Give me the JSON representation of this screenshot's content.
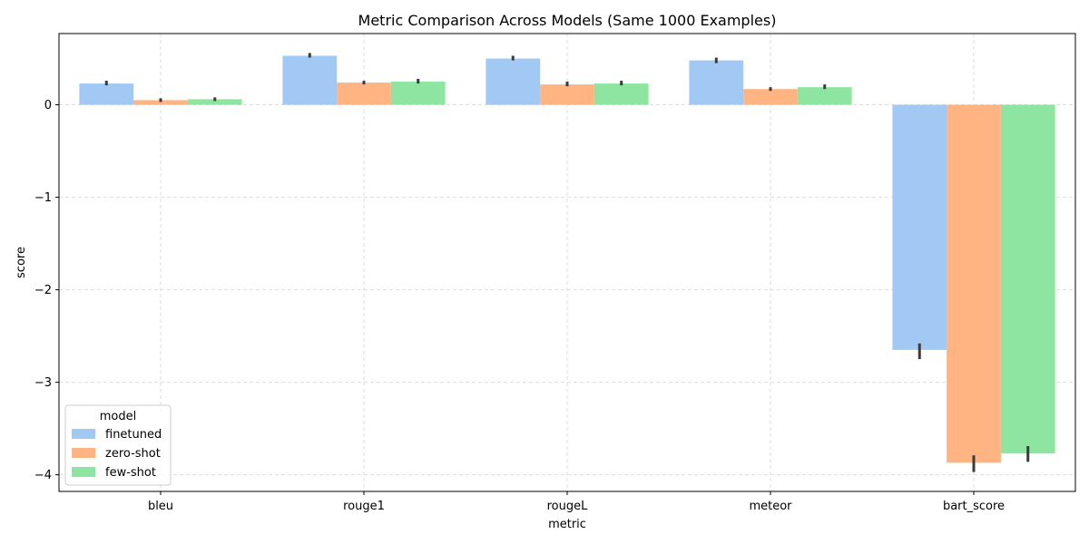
{
  "chart_data": {
    "type": "bar",
    "title": "Metric Comparison Across Models (Same 1000 Examples)",
    "xlabel": "metric",
    "ylabel": "score",
    "ylim": [
      -4.18,
      0.77
    ],
    "yticks": [
      0,
      -1,
      -2,
      -3,
      -4
    ],
    "ytick_labels": [
      "0",
      "−1",
      "−2",
      "−3",
      "−4"
    ],
    "grid": true,
    "legend_placement": "lower-left",
    "legend_title": "model",
    "categories": [
      "bleu",
      "rouge1",
      "rougeL",
      "meteor",
      "bart_score"
    ],
    "series": [
      {
        "name": "finetuned",
        "color": "#a1c9f4",
        "values": [
          0.23,
          0.53,
          0.5,
          0.48,
          -2.65
        ],
        "err_low": [
          0.21,
          0.51,
          0.48,
          0.45,
          -2.75
        ],
        "err_high": [
          0.26,
          0.56,
          0.53,
          0.51,
          -2.58
        ]
      },
      {
        "name": "zero-shot",
        "color": "#ffb482",
        "values": [
          0.05,
          0.24,
          0.22,
          0.17,
          -3.87
        ],
        "err_low": [
          0.03,
          0.22,
          0.2,
          0.15,
          -3.97
        ],
        "err_high": [
          0.07,
          0.26,
          0.25,
          0.19,
          -3.79
        ]
      },
      {
        "name": "few-shot",
        "color": "#8de5a1",
        "values": [
          0.06,
          0.25,
          0.23,
          0.19,
          -3.77
        ],
        "err_low": [
          0.04,
          0.23,
          0.21,
          0.17,
          -3.86
        ],
        "err_high": [
          0.08,
          0.28,
          0.26,
          0.22,
          -3.69
        ]
      }
    ]
  }
}
